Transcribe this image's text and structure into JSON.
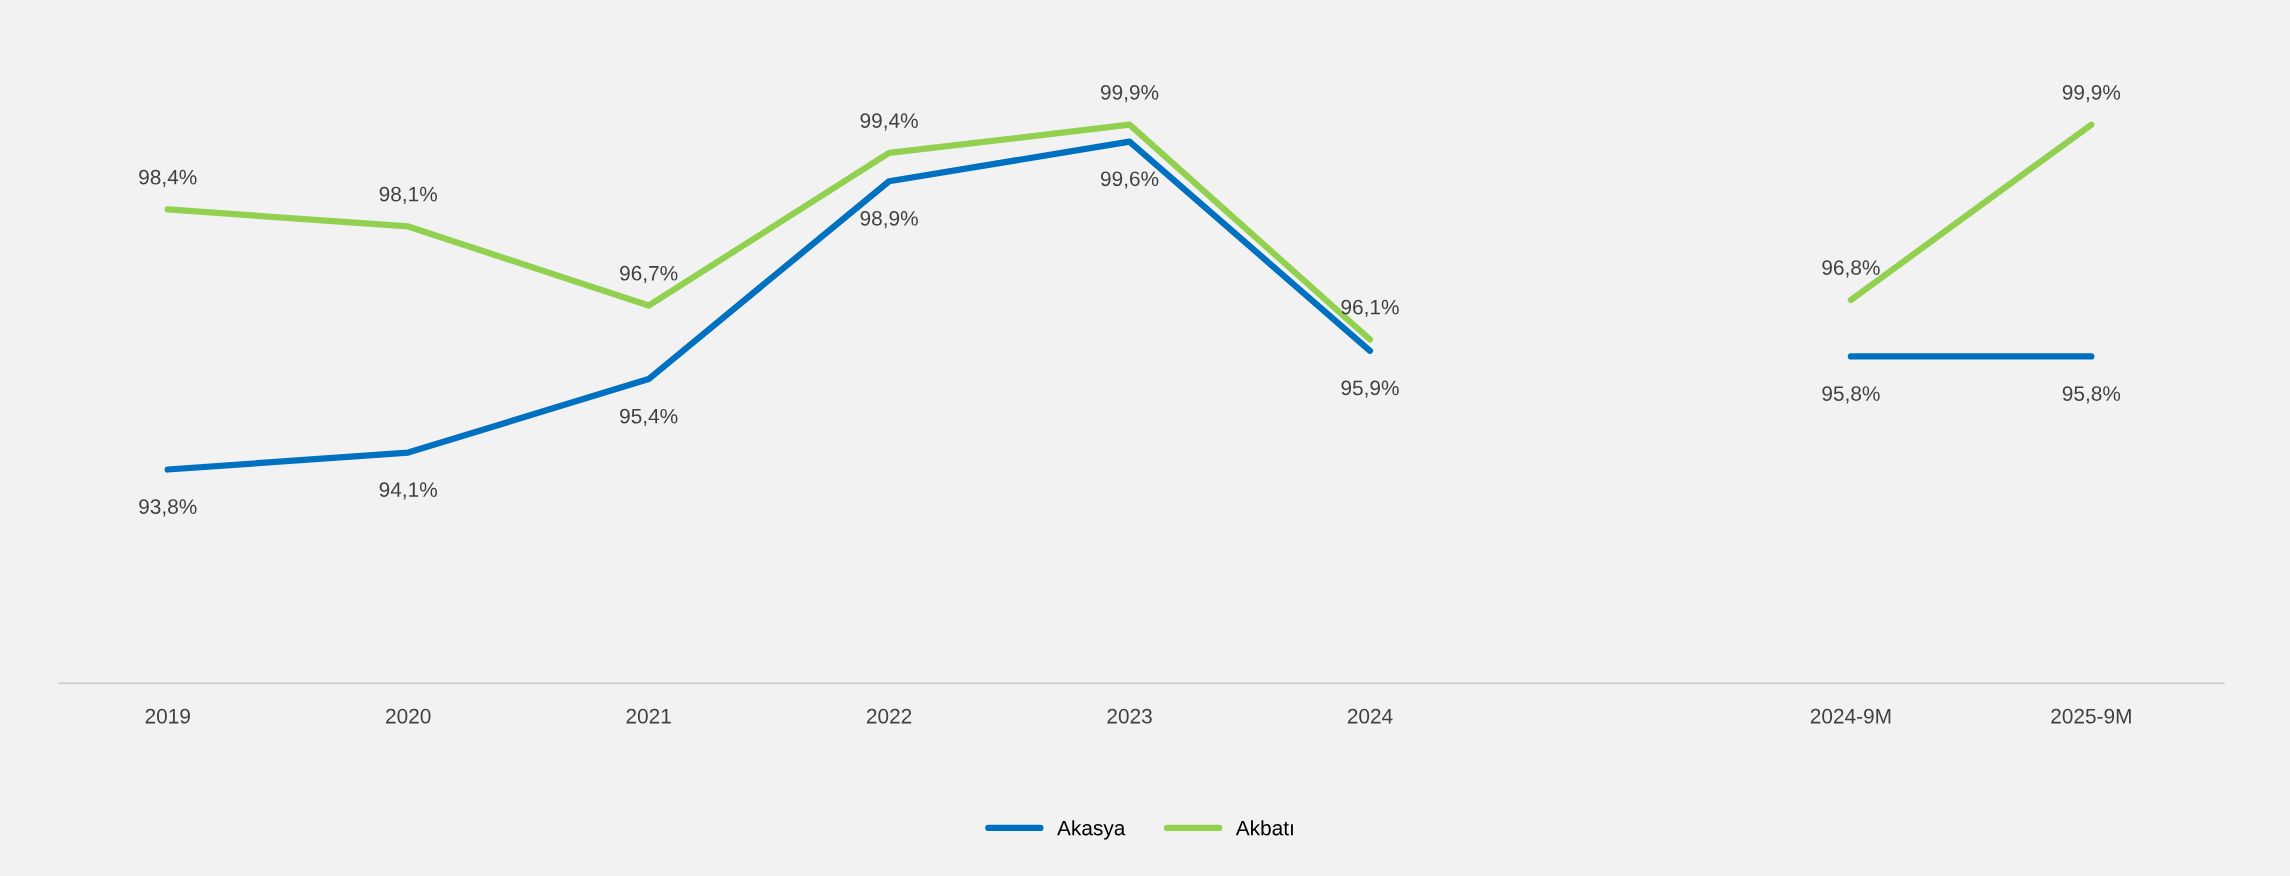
{
  "chart_data": {
    "type": "line",
    "categories": [
      "2019",
      "2020",
      "2021",
      "2022",
      "2023",
      "2024",
      null,
      "2024-9M",
      "2025-9M"
    ],
    "series": [
      {
        "name": "Akasya",
        "color": "#0070c0",
        "values": [
          93.8,
          94.1,
          95.4,
          98.9,
          99.6,
          95.9,
          null,
          95.8,
          95.8
        ],
        "value_labels": [
          "93,8%",
          "94,1%",
          "95,4%",
          "98,9%",
          "99,6%",
          "95,9%",
          null,
          "95,8%",
          "95,8%"
        ]
      },
      {
        "name": "Akbatı",
        "color": "#92d050",
        "values": [
          98.4,
          98.1,
          96.7,
          99.4,
          99.9,
          96.1,
          null,
          96.8,
          99.9
        ],
        "value_labels": [
          "98,4%",
          "98,1%",
          "96,7%",
          "99,4%",
          "99,9%",
          "96,1%",
          null,
          "96,8%",
          "99,9%"
        ]
      }
    ],
    "tick_labels": "x",
    "grid": false,
    "legend": "bottom",
    "marker": "none",
    "line_style": "solid"
  }
}
